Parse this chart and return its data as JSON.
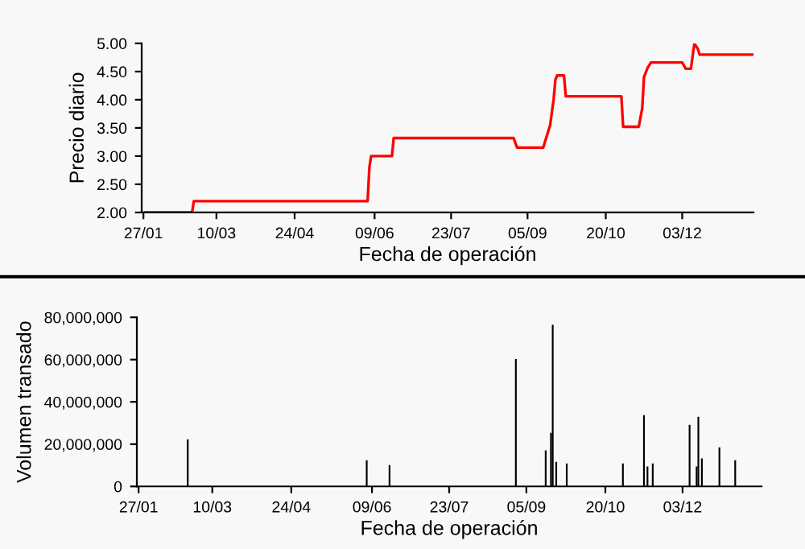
{
  "chart_data": [
    {
      "type": "line",
      "xlabel": "Fecha de operación",
      "ylabel": "Precio diario",
      "x": [
        "2001-01-28",
        "2001-02-24",
        "2001-02-25",
        "2001-06-05",
        "2001-06-06",
        "2001-06-07",
        "2001-06-19",
        "2001-06-20",
        "2001-08-28",
        "2001-08-30",
        "2001-09-14",
        "2001-09-16",
        "2001-09-18",
        "2001-09-20",
        "2001-09-21",
        "2001-09-22",
        "2001-09-26",
        "2001-09-27",
        "2001-10-29",
        "2001-10-30",
        "2001-11-08",
        "2001-11-10",
        "2001-11-11",
        "2001-11-13",
        "2001-11-15",
        "2001-12-03",
        "2001-12-05",
        "2001-12-08",
        "2001-12-10",
        "2001-12-12",
        "2001-12-13",
        "2002-01-13"
      ],
      "series": [
        {
          "color": "#ff0000",
          "values": [
            2.0,
            2.0,
            2.2,
            2.2,
            2.8,
            3.0,
            3.0,
            3.32,
            3.32,
            3.15,
            3.15,
            3.35,
            3.55,
            4.0,
            4.35,
            4.43,
            4.43,
            4.06,
            4.06,
            3.52,
            3.52,
            3.85,
            4.4,
            4.56,
            4.66,
            4.66,
            4.55,
            4.55,
            5.0,
            4.9,
            4.8,
            4.8
          ]
        }
      ],
      "xlim": [
        "2001-01-26",
        "2002-01-13"
      ],
      "xticks": [
        {
          "value": "2001-01-27",
          "label": "27/01"
        },
        {
          "value": "2001-03-10",
          "label": "10/03"
        },
        {
          "value": "2001-04-24",
          "label": "24/04"
        },
        {
          "value": "2001-06-09",
          "label": "09/06"
        },
        {
          "value": "2001-07-23",
          "label": "23/07"
        },
        {
          "value": "2001-09-05",
          "label": "05/09"
        },
        {
          "value": "2001-10-20",
          "label": "20/10"
        },
        {
          "value": "2001-12-03",
          "label": "03/12"
        }
      ],
      "ylim": [
        2,
        5
      ],
      "yticks": [
        {
          "value": 2,
          "label": "2.00"
        },
        {
          "value": 2.5,
          "label": "2.50"
        },
        {
          "value": 3,
          "label": "3.00"
        },
        {
          "value": 3.5,
          "label": "3.50"
        },
        {
          "value": 4,
          "label": "4.00"
        },
        {
          "value": 4.5,
          "label": "4.50"
        },
        {
          "value": 5,
          "label": "5.00"
        }
      ],
      "grid": false,
      "legend": false
    },
    {
      "type": "bar",
      "xlabel": "Fecha de operación",
      "ylabel": "Volumen transado",
      "x": [
        "2001-02-24",
        "2001-06-06",
        "2001-06-19",
        "2001-08-30",
        "2001-09-16",
        "2001-09-19",
        "2001-09-20",
        "2001-09-22",
        "2001-09-28",
        "2001-10-30",
        "2001-11-11",
        "2001-11-13",
        "2001-11-16",
        "2001-12-07",
        "2001-12-11",
        "2001-12-12",
        "2001-12-14",
        "2001-12-24",
        "2002-01-02"
      ],
      "series": [
        {
          "color": "#000000",
          "values": [
            22300000,
            12400000,
            10100000,
            60300000,
            17000000,
            25300000,
            76500000,
            11600000,
            10900000,
            10900000,
            33700000,
            9400000,
            10900000,
            29100000,
            9400000,
            32900000,
            13200000,
            18500000,
            12400000
          ]
        }
      ],
      "xlim": [
        "2001-01-26",
        "2002-01-17"
      ],
      "xticks": [
        {
          "value": "2001-01-27",
          "label": "27/01"
        },
        {
          "value": "2001-03-10",
          "label": "10/03"
        },
        {
          "value": "2001-04-24",
          "label": "24/04"
        },
        {
          "value": "2001-06-09",
          "label": "09/06"
        },
        {
          "value": "2001-07-23",
          "label": "23/07"
        },
        {
          "value": "2001-09-05",
          "label": "05/09"
        },
        {
          "value": "2001-10-20",
          "label": "20/10"
        },
        {
          "value": "2001-12-03",
          "label": "03/12"
        }
      ],
      "ylim": [
        0,
        80000000
      ],
      "yticks": [
        {
          "value": 0,
          "label": "0"
        },
        {
          "value": 20000000,
          "label": "20,000,000"
        },
        {
          "value": 40000000,
          "label": "40,000,000"
        },
        {
          "value": 60000000,
          "label": "60,000,000"
        },
        {
          "value": 80000000,
          "label": "80,000,000"
        }
      ],
      "grid": false,
      "legend": false
    }
  ]
}
